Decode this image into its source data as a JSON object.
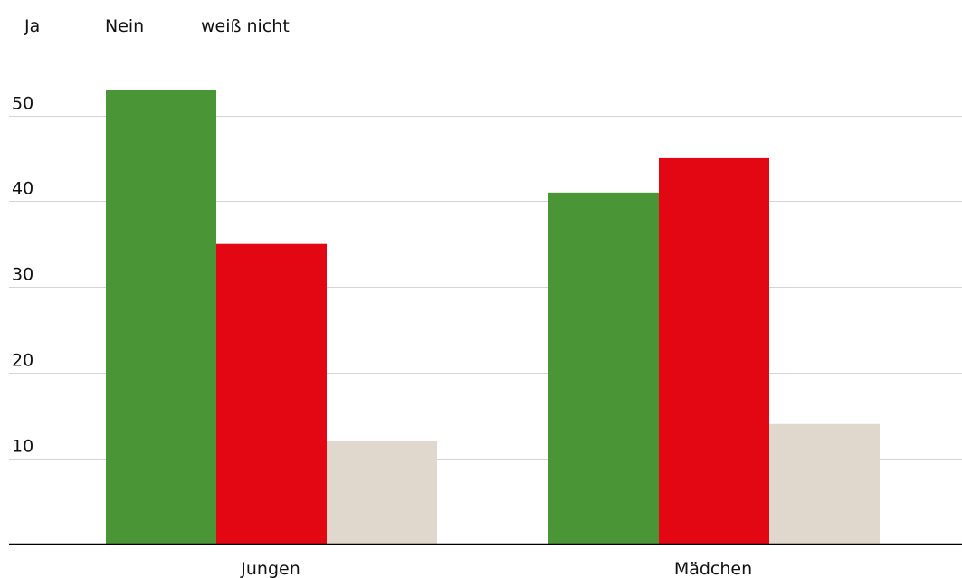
{
  "chart_data": {
    "type": "bar",
    "categories": [
      "Jungen",
      "Mädchen"
    ],
    "series": [
      {
        "name": "Ja",
        "color": "#4a9637",
        "values": [
          53,
          41
        ]
      },
      {
        "name": "Nein",
        "color": "#e30613",
        "values": [
          35,
          45
        ]
      },
      {
        "name": "weiß nicht",
        "color": "#e0d8cc",
        "values": [
          12,
          14
        ]
      }
    ],
    "yticks": [
      10,
      20,
      30,
      40,
      50
    ],
    "ylim": [
      0,
      55
    ],
    "grid": true,
    "legend_position": "top-left",
    "colors": {
      "gridline": "#d4d4d4",
      "axis": "#000000",
      "text": "#111111"
    }
  }
}
